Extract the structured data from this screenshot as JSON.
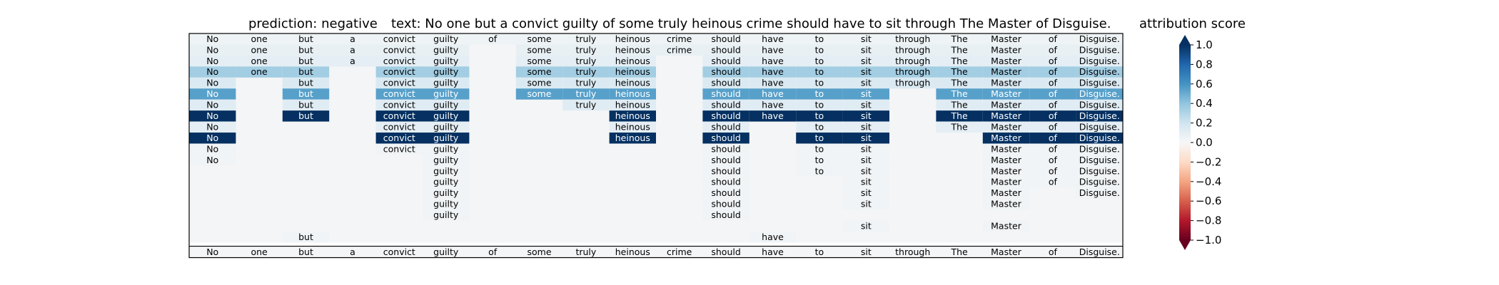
{
  "chart_data": {
    "type": "heatmap",
    "title_prediction": "prediction:  negative",
    "title_text": "text:  No one but a convict guilty of some truly heinous crime should have to sit through The Master of Disguise.",
    "colorbar_title": "attribution score",
    "colorbar_ticks": [
      "−1.0",
      "−0.8",
      "−0.6",
      "−0.4",
      "−0.2",
      "0.0",
      "0.2",
      "0.4",
      "0.6",
      "0.8",
      "1.0"
    ],
    "colorbar_range": [
      -1.0,
      1.0
    ],
    "colormap": "RdBu",
    "colors": {
      "low": "#67001f",
      "zero": "#f7f7f7",
      "high": "#053061",
      "neutral_cell": "#f4f5f6"
    },
    "tokens": [
      "No",
      "one",
      "but",
      "a",
      "convict",
      "guilty",
      "of",
      "some",
      "truly",
      "heinous",
      "crime",
      "should",
      "have",
      "to",
      "sit",
      "through",
      "The",
      "Master",
      "of",
      "Disguise."
    ],
    "rows": [
      {
        "words": [
          "No",
          "one",
          "but",
          "a",
          "convict",
          "guilty",
          "of",
          "some",
          "truly",
          "heinous",
          "crime",
          "should",
          "have",
          "to",
          "sit",
          "through",
          "The",
          "Master",
          "of",
          "Disguise."
        ],
        "scores": [
          0.05,
          0.05,
          0.05,
          0.05,
          0.05,
          0.05,
          0.05,
          0.05,
          0.05,
          0.05,
          0.05,
          0.05,
          0.05,
          0.05,
          0.05,
          0.05,
          0.05,
          0.05,
          0.05,
          0.05
        ]
      },
      {
        "words": [
          "No",
          "one",
          "but",
          "a",
          "convict",
          "guilty",
          "",
          "some",
          "truly",
          "heinous",
          "crime",
          "should",
          "have",
          "to",
          "sit",
          "through",
          "The",
          "Master",
          "of",
          "Disguise."
        ],
        "scores": [
          0.08,
          0.08,
          0.08,
          0.08,
          0.08,
          0.08,
          0,
          0.08,
          0.08,
          0.08,
          0.08,
          0.08,
          0.08,
          0.08,
          0.08,
          0.08,
          0.08,
          0.08,
          0.08,
          0.08
        ]
      },
      {
        "words": [
          "No",
          "one",
          "but",
          "a",
          "convict",
          "guilty",
          "",
          "some",
          "truly",
          "heinous",
          "",
          "should",
          "have",
          "to",
          "sit",
          "through",
          "The",
          "Master",
          "of",
          "Disguise."
        ],
        "scores": [
          0.1,
          0.1,
          0.1,
          0.1,
          0.1,
          0.1,
          0,
          0.1,
          0.1,
          0.1,
          0,
          0.1,
          0.1,
          0.1,
          0.1,
          0.1,
          0.1,
          0.1,
          0.1,
          0.1
        ]
      },
      {
        "words": [
          "No",
          "one",
          "but",
          "",
          "convict",
          "guilty",
          "",
          "some",
          "truly",
          "heinous",
          "",
          "should",
          "have",
          "to",
          "sit",
          "through",
          "The",
          "Master",
          "of",
          "Disguise."
        ],
        "scores": [
          0.35,
          0.35,
          0.35,
          0,
          0.35,
          0.35,
          0,
          0.35,
          0.35,
          0.35,
          0,
          0.35,
          0.35,
          0.35,
          0.35,
          0.35,
          0.35,
          0.35,
          0.35,
          0.35
        ]
      },
      {
        "words": [
          "No",
          "",
          "but",
          "",
          "convict",
          "guilty",
          "",
          "some",
          "truly",
          "heinous",
          "",
          "should",
          "have",
          "to",
          "sit",
          "through",
          "The",
          "Master",
          "of",
          "Disguise."
        ],
        "scores": [
          0.15,
          0,
          0.15,
          0,
          0.15,
          0.15,
          0,
          0.15,
          0.15,
          0.15,
          0,
          0.15,
          0.15,
          0.15,
          0.15,
          0.15,
          0.15,
          0.15,
          0.15,
          0.15
        ]
      },
      {
        "words": [
          "No",
          "",
          "but",
          "",
          "convict",
          "guilty",
          "",
          "some",
          "truly",
          "heinous",
          "",
          "should",
          "have",
          "to",
          "sit",
          "",
          "The",
          "Master",
          "of",
          "Disguise."
        ],
        "scores": [
          0.55,
          0,
          0.55,
          0,
          0.55,
          0.55,
          0,
          0.55,
          0.55,
          0.55,
          0,
          0.55,
          0.55,
          0.55,
          0.55,
          0,
          0.55,
          0.55,
          0.55,
          0.55
        ]
      },
      {
        "words": [
          "No",
          "",
          "but",
          "",
          "convict",
          "guilty",
          "",
          "",
          "truly",
          "heinous",
          "",
          "should",
          "have",
          "to",
          "sit",
          "",
          "The",
          "Master",
          "of",
          "Disguise."
        ],
        "scores": [
          0.12,
          0,
          0.12,
          0,
          0.12,
          0.12,
          0,
          0,
          0.12,
          0.12,
          0,
          0.12,
          0.12,
          0.12,
          0.12,
          0,
          0.12,
          0.12,
          0.12,
          0.12
        ]
      },
      {
        "words": [
          "No",
          "",
          "but",
          "",
          "convict",
          "guilty",
          "",
          "",
          "",
          "heinous",
          "",
          "should",
          "have",
          "to",
          "sit",
          "",
          "The",
          "Master",
          "of",
          "Disguise."
        ],
        "scores": [
          1.0,
          0,
          1.0,
          0,
          1.0,
          1.0,
          0,
          0,
          0,
          1.0,
          0,
          1.0,
          1.0,
          1.0,
          1.0,
          0,
          1.0,
          1.0,
          1.0,
          1.0
        ]
      },
      {
        "words": [
          "No",
          "",
          "",
          "",
          "convict",
          "guilty",
          "",
          "",
          "",
          "heinous",
          "",
          "should",
          "",
          "to",
          "sit",
          "",
          "The",
          "Master",
          "of",
          "Disguise."
        ],
        "scores": [
          0.1,
          0,
          0,
          0,
          0.1,
          0.1,
          0,
          0,
          0,
          0.1,
          0,
          0.1,
          0,
          0.1,
          0.1,
          0,
          0.1,
          0.1,
          0.1,
          0.1
        ]
      },
      {
        "words": [
          "No",
          "",
          "",
          "",
          "convict",
          "guilty",
          "",
          "",
          "",
          "heinous",
          "",
          "should",
          "",
          "to",
          "sit",
          "",
          "",
          "Master",
          "of",
          "Disguise."
        ],
        "scores": [
          1.0,
          0,
          0,
          0,
          1.0,
          1.0,
          0,
          0,
          0,
          1.0,
          0,
          1.0,
          0,
          1.0,
          1.0,
          0,
          0,
          1.0,
          1.0,
          1.0
        ]
      },
      {
        "words": [
          "No",
          "",
          "",
          "",
          "convict",
          "guilty",
          "",
          "",
          "",
          "",
          "",
          "should",
          "",
          "to",
          "sit",
          "",
          "",
          "Master",
          "of",
          "Disguise."
        ],
        "scores": [
          0.03,
          0,
          0,
          0,
          0.03,
          0.03,
          0,
          0,
          0,
          0,
          0,
          0.03,
          0,
          0.03,
          0.03,
          0,
          0,
          0.03,
          0.03,
          0.03
        ]
      },
      {
        "words": [
          "No",
          "",
          "",
          "",
          "",
          "guilty",
          "",
          "",
          "",
          "",
          "",
          "should",
          "",
          "to",
          "sit",
          "",
          "",
          "Master",
          "of",
          "Disguise."
        ],
        "scores": [
          0.03,
          0,
          0,
          0,
          0,
          0.03,
          0,
          0,
          0,
          0,
          0,
          0.03,
          0,
          0.03,
          0.03,
          0,
          0,
          0.03,
          0.03,
          0.03
        ]
      },
      {
        "words": [
          "",
          "",
          "",
          "",
          "",
          "guilty",
          "",
          "",
          "",
          "",
          "",
          "should",
          "",
          "to",
          "sit",
          "",
          "",
          "Master",
          "of",
          "Disguise."
        ],
        "scores": [
          0,
          0,
          0,
          0,
          0,
          0.03,
          0,
          0,
          0,
          0,
          0,
          0.03,
          0,
          0.03,
          0.03,
          0,
          0,
          0.03,
          0.03,
          0.03
        ]
      },
      {
        "words": [
          "",
          "",
          "",
          "",
          "",
          "guilty",
          "",
          "",
          "",
          "",
          "",
          "should",
          "",
          "",
          "sit",
          "",
          "",
          "Master",
          "of",
          "Disguise."
        ],
        "scores": [
          0,
          0,
          0,
          0,
          0,
          0.03,
          0,
          0,
          0,
          0,
          0,
          0.03,
          0,
          0,
          0.03,
          0,
          0,
          0.03,
          0.03,
          0.03
        ]
      },
      {
        "words": [
          "",
          "",
          "",
          "",
          "",
          "guilty",
          "",
          "",
          "",
          "",
          "",
          "should",
          "",
          "",
          "sit",
          "",
          "",
          "Master",
          "",
          "Disguise."
        ],
        "scores": [
          0,
          0,
          0,
          0,
          0,
          0.03,
          0,
          0,
          0,
          0,
          0,
          0.03,
          0,
          0,
          0.03,
          0,
          0,
          0.03,
          0,
          0.03
        ]
      },
      {
        "words": [
          "",
          "",
          "",
          "",
          "",
          "guilty",
          "",
          "",
          "",
          "",
          "",
          "should",
          "",
          "",
          "sit",
          "",
          "",
          "Master",
          "",
          ""
        ],
        "scores": [
          0,
          0,
          0,
          0,
          0,
          0.03,
          0,
          0,
          0,
          0,
          0,
          0.03,
          0,
          0,
          0.03,
          0,
          0,
          0.03,
          0,
          0
        ]
      },
      {
        "words": [
          "",
          "",
          "",
          "",
          "",
          "guilty",
          "",
          "",
          "",
          "",
          "",
          "should",
          "",
          "",
          "",
          "",
          "",
          "",
          "",
          ""
        ],
        "scores": [
          0,
          0,
          0,
          0,
          0,
          0.03,
          0,
          0,
          0,
          0,
          0,
          0.03,
          0,
          0,
          0,
          0,
          0,
          0,
          0,
          0
        ]
      },
      {
        "words": [
          "",
          "",
          "",
          "",
          "",
          "",
          "",
          "",
          "",
          "",
          "",
          "",
          "",
          "",
          "sit",
          "",
          "",
          "Master",
          "",
          ""
        ],
        "scores": [
          0,
          0,
          0,
          0,
          0,
          0,
          0,
          0,
          0,
          0,
          0,
          0,
          0,
          0,
          0.03,
          0,
          0,
          0.03,
          0,
          0
        ]
      },
      {
        "words": [
          "",
          "",
          "but",
          "",
          "",
          "",
          "",
          "",
          "",
          "",
          "",
          "",
          "have",
          "",
          "",
          "",
          "",
          "",
          "",
          ""
        ],
        "scores": [
          0,
          0,
          0.03,
          0,
          0,
          0,
          0,
          0,
          0,
          0,
          0,
          0,
          0.03,
          0,
          0,
          0,
          0,
          0,
          0,
          0
        ]
      }
    ],
    "bottom_labels": [
      "No",
      "one",
      "but",
      "a",
      "convict",
      "guilty",
      "of",
      "some",
      "truly",
      "heinous",
      "crime",
      "should",
      "have",
      "to",
      "sit",
      "through",
      "The",
      "Master",
      "of",
      "Disguise."
    ]
  }
}
